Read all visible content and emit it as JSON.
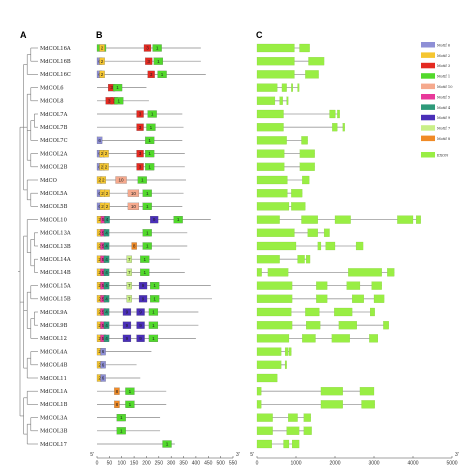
{
  "panels": {
    "a": "A",
    "b": "B",
    "c": "C"
  },
  "genes": [
    {
      "name": "MdCOL16A",
      "motifs": [
        [
          1,
          0
        ],
        [
          2,
          10
        ],
        [
          3,
          190
        ],
        [
          1,
          225
        ]
      ],
      "len": 420,
      "exons": [
        [
          0,
          960
        ],
        [
          1090,
          1350
        ]
      ]
    },
    {
      "name": "MdCOL16B",
      "motifs": [
        [
          6,
          0
        ],
        [
          2,
          10
        ],
        [
          3,
          195
        ],
        [
          1,
          230
        ]
      ],
      "len": 420,
      "exons": [
        [
          0,
          960
        ],
        [
          1320,
          1720
        ]
      ]
    },
    {
      "name": "MdCOL16C",
      "motifs": [
        [
          6,
          0
        ],
        [
          2,
          10
        ],
        [
          3,
          205
        ],
        [
          1,
          245
        ]
      ],
      "len": 440,
      "exons": [
        [
          0,
          960
        ],
        [
          1240,
          1580
        ]
      ]
    },
    {
      "name": "MdCOL6",
      "motifs": [
        [
          3,
          45
        ],
        [
          1,
          65
        ]
      ],
      "len": 200,
      "exons": [
        [
          0,
          520
        ],
        [
          640,
          760
        ],
        [
          880,
          920
        ],
        [
          1040,
          1080
        ]
      ]
    },
    {
      "name": "MdCOL8",
      "motifs": [
        [
          3,
          35
        ],
        [
          3,
          55
        ],
        [
          1,
          70
        ]
      ],
      "len": 210,
      "exons": [
        [
          0,
          460
        ],
        [
          580,
          660
        ],
        [
          760,
          800
        ]
      ]
    },
    {
      "name": "MdCOL7A",
      "motifs": [
        [
          3,
          160
        ],
        [
          1,
          205
        ]
      ],
      "len": 345,
      "exons": [
        [
          0,
          680
        ],
        [
          1860,
          2010
        ],
        [
          2060,
          2120
        ]
      ]
    },
    {
      "name": "MdCOL7B",
      "motifs": [
        [
          3,
          160
        ],
        [
          1,
          200
        ]
      ],
      "len": 350,
      "exons": [
        [
          0,
          680
        ],
        [
          1930,
          2060
        ],
        [
          2200,
          2250
        ]
      ]
    },
    {
      "name": "MdCOL7C",
      "motifs": [
        [
          6,
          0
        ],
        [
          1,
          195
        ]
      ],
      "len": 345,
      "exons": [
        [
          0,
          760
        ],
        [
          1140,
          1300
        ]
      ]
    },
    {
      "name": "MdCOL2A",
      "motifs": [
        [
          6,
          0
        ],
        [
          2,
          10
        ],
        [
          2,
          26
        ],
        [
          3,
          160
        ],
        [
          1,
          195
        ]
      ],
      "len": 355,
      "exons": [
        [
          0,
          700
        ],
        [
          1100,
          1480
        ]
      ]
    },
    {
      "name": "MdCOL2B",
      "motifs": [
        [
          6,
          0
        ],
        [
          2,
          10
        ],
        [
          2,
          26
        ],
        [
          3,
          160
        ],
        [
          1,
          195
        ]
      ],
      "len": 355,
      "exons": [
        [
          0,
          700
        ],
        [
          1100,
          1480
        ]
      ]
    },
    {
      "name": "MdCO",
      "motifs": [
        [
          2,
          0
        ],
        [
          2,
          15
        ],
        [
          10,
          75
        ],
        [
          1,
          165
        ]
      ],
      "len": 360,
      "exons": [
        [
          0,
          780
        ],
        [
          1160,
          1340
        ]
      ]
    },
    {
      "name": "MdCOL5A",
      "motifs": [
        [
          6,
          0
        ],
        [
          2,
          12
        ],
        [
          2,
          30
        ],
        [
          10,
          125
        ],
        [
          1,
          185
        ]
      ],
      "len": 350,
      "exons": [
        [
          0,
          780
        ],
        [
          880,
          1160
        ]
      ]
    },
    {
      "name": "MdCOL5B",
      "motifs": [
        [
          6,
          0
        ],
        [
          2,
          12
        ],
        [
          2,
          30
        ],
        [
          10,
          125
        ],
        [
          1,
          185
        ]
      ],
      "len": 345,
      "exons": [
        [
          0,
          820
        ],
        [
          880,
          1240
        ]
      ]
    },
    {
      "name": "MdCOL10",
      "motifs": [
        [
          2,
          0
        ],
        [
          5,
          15
        ],
        [
          4,
          30
        ],
        [
          9,
          215
        ],
        [
          1,
          310
        ]
      ],
      "len": 460,
      "exons": [
        [
          0,
          580
        ],
        [
          1140,
          1560
        ],
        [
          2000,
          2400
        ],
        [
          3600,
          4000
        ],
        [
          4080,
          4200
        ]
      ]
    },
    {
      "name": "MdCOL13A",
      "motifs": [
        [
          2,
          0
        ],
        [
          5,
          14
        ],
        [
          4,
          28
        ],
        [
          1,
          185
        ]
      ],
      "len": 365,
      "exons": [
        [
          0,
          960
        ],
        [
          1300,
          1560
        ],
        [
          1720,
          1860
        ]
      ]
    },
    {
      "name": "MdCOL13B",
      "motifs": [
        [
          2,
          0
        ],
        [
          5,
          14
        ],
        [
          4,
          28
        ],
        [
          8,
          140
        ],
        [
          1,
          185
        ]
      ],
      "len": 365,
      "exons": [
        [
          0,
          1000
        ],
        [
          1560,
          1640
        ],
        [
          1760,
          2000
        ],
        [
          2540,
          2720
        ]
      ]
    },
    {
      "name": "MdCOL14A",
      "motifs": [
        [
          2,
          0
        ],
        [
          5,
          14
        ],
        [
          4,
          28
        ],
        [
          7,
          120
        ],
        [
          1,
          175
        ]
      ],
      "len": 335,
      "exons": [
        [
          0,
          580
        ],
        [
          1040,
          1220
        ],
        [
          1260,
          1360
        ]
      ]
    },
    {
      "name": "MdCOL14B",
      "motifs": [
        [
          2,
          0
        ],
        [
          5,
          14
        ],
        [
          4,
          28
        ],
        [
          7,
          120
        ],
        [
          1,
          175
        ]
      ],
      "len": 355,
      "exons": [
        [
          0,
          120
        ],
        [
          280,
          800
        ],
        [
          2340,
          3200
        ],
        [
          3340,
          3520
        ]
      ]
    },
    {
      "name": "MdCOL15A",
      "motifs": [
        [
          2,
          0
        ],
        [
          5,
          14
        ],
        [
          4,
          28
        ],
        [
          7,
          120
        ],
        [
          9,
          170
        ],
        [
          1,
          215
        ]
      ],
      "len": 460,
      "exons": [
        [
          0,
          900
        ],
        [
          1520,
          1800
        ],
        [
          2300,
          2640
        ],
        [
          2940,
          3200
        ]
      ]
    },
    {
      "name": "MdCOL15B",
      "motifs": [
        [
          2,
          0
        ],
        [
          5,
          14
        ],
        [
          4,
          28
        ],
        [
          7,
          120
        ],
        [
          9,
          170
        ],
        [
          1,
          215
        ]
      ],
      "len": 465,
      "exons": [
        [
          0,
          900
        ],
        [
          1520,
          1800
        ],
        [
          2440,
          2740
        ],
        [
          3000,
          3260
        ]
      ]
    },
    {
      "name": "MdCOL9A",
      "motifs": [
        [
          2,
          0
        ],
        [
          5,
          14
        ],
        [
          4,
          28
        ],
        [
          9,
          105
        ],
        [
          9,
          160
        ],
        [
          1,
          210
        ]
      ],
      "len": 410,
      "exons": [
        [
          0,
          880
        ],
        [
          1240,
          1600
        ],
        [
          1980,
          2440
        ],
        [
          2900,
          3020
        ]
      ]
    },
    {
      "name": "MdCOL9B",
      "motifs": [
        [
          2,
          0
        ],
        [
          5,
          14
        ],
        [
          4,
          28
        ],
        [
          9,
          105
        ],
        [
          9,
          160
        ],
        [
          1,
          210
        ]
      ],
      "len": 410,
      "exons": [
        [
          0,
          900
        ],
        [
          1260,
          1620
        ],
        [
          2100,
          2560
        ],
        [
          3240,
          3380
        ]
      ]
    },
    {
      "name": "MdCOL12",
      "motifs": [
        [
          2,
          0
        ],
        [
          5,
          14
        ],
        [
          4,
          28
        ],
        [
          9,
          105
        ],
        [
          9,
          160
        ],
        [
          1,
          210
        ]
      ],
      "len": 400,
      "exons": [
        [
          0,
          820
        ],
        [
          1160,
          1500
        ],
        [
          1920,
          2380
        ],
        [
          2880,
          3100
        ]
      ]
    },
    {
      "name": "MdCOL4A",
      "motifs": [
        [
          2,
          0
        ],
        [
          6,
          14
        ]
      ],
      "len": 220,
      "exons": [
        [
          0,
          620
        ],
        [
          720,
          800
        ],
        [
          820,
          880
        ]
      ]
    },
    {
      "name": "MdCOL4B",
      "motifs": [
        [
          2,
          0
        ],
        [
          6,
          14
        ]
      ],
      "len": 160,
      "exons": [
        [
          0,
          620
        ],
        [
          720,
          760
        ]
      ]
    },
    {
      "name": "MdCOL11",
      "motifs": [
        [
          2,
          0
        ],
        [
          6,
          14
        ]
      ],
      "len": 175,
      "exons": [
        [
          0,
          520
        ]
      ]
    },
    {
      "name": "MdCOL1A",
      "motifs": [
        [
          8,
          70
        ],
        [
          1,
          115
        ]
      ],
      "len": 280,
      "exons": [
        [
          0,
          110
        ],
        [
          1640,
          2200
        ],
        [
          2640,
          3000
        ]
      ]
    },
    {
      "name": "MdCOL1B",
      "motifs": [
        [
          8,
          70
        ],
        [
          1,
          115
        ]
      ],
      "len": 280,
      "exons": [
        [
          0,
          110
        ],
        [
          1640,
          2200
        ],
        [
          2680,
          3020
        ]
      ]
    },
    {
      "name": "MdCOL3A",
      "motifs": [
        [
          1,
          80
        ]
      ],
      "len": 255,
      "exons": [
        [
          0,
          400
        ],
        [
          800,
          1040
        ],
        [
          1200,
          1380
        ]
      ]
    },
    {
      "name": "MdCOL3B",
      "motifs": [
        [
          1,
          80
        ]
      ],
      "len": 255,
      "exons": [
        [
          0,
          400
        ],
        [
          760,
          1080
        ],
        [
          1200,
          1400
        ]
      ]
    },
    {
      "name": "MdCOL17",
      "motifs": [
        [
          1,
          265
        ]
      ],
      "len": 315,
      "exons": [
        [
          0,
          380
        ],
        [
          680,
          820
        ],
        [
          900,
          1080
        ]
      ]
    }
  ],
  "motif_legend": [
    {
      "motif": 6,
      "label": "Motif 6",
      "color": "#8e8fd6"
    },
    {
      "motif": 2,
      "label": "Motif 2",
      "color": "#f5c631"
    },
    {
      "motif": 3,
      "label": "Motif 3",
      "color": "#e42a21"
    },
    {
      "motif": 1,
      "label": "Motif 1",
      "color": "#52d92c"
    },
    {
      "motif": 10,
      "label": "Motif 10",
      "color": "#f5a98d"
    },
    {
      "motif": 5,
      "label": "Motif 5",
      "color": "#e8399a"
    },
    {
      "motif": 4,
      "label": "Motif 4",
      "color": "#2e9a7a"
    },
    {
      "motif": 9,
      "label": "Motif 9",
      "color": "#4a2fb8"
    },
    {
      "motif": 7,
      "label": "Motif 7",
      "color": "#c9ef88"
    },
    {
      "motif": 8,
      "label": "Motif 8",
      "color": "#f08a26"
    }
  ],
  "exon_legend": {
    "label": "EXON",
    "color": "#99ee44"
  },
  "intron_color": "#9a9a9a",
  "axis_b": {
    "start_label": "5'",
    "end_label": "3'",
    "ticks": [
      0,
      50,
      100,
      150,
      200,
      250,
      300,
      350,
      400,
      450,
      500,
      550
    ],
    "max": 550
  },
  "axis_c": {
    "start_label": "5'",
    "end_label": "3'",
    "ticks": [
      0,
      1000,
      2000,
      3000,
      4000,
      5000
    ],
    "max": 5000
  }
}
